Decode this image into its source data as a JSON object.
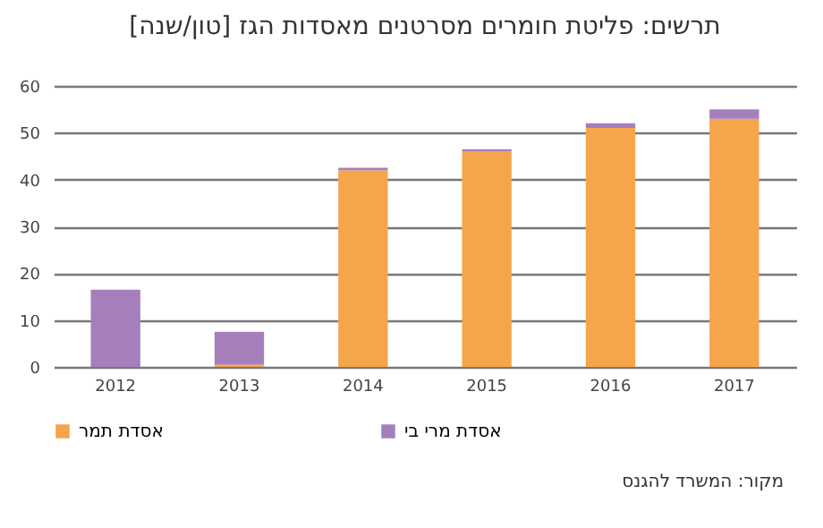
{
  "chart_data": {
    "type": "bar",
    "title": "תרשים: פליטת חומרים מסרטנים מאסדות הגז [טון/שנה]",
    "categories": [
      "2012",
      "2013",
      "2014",
      "2015",
      "2016",
      "2017"
    ],
    "series": [
      {
        "name": "אסדת תמר",
        "color": "#f5a54a",
        "values": [
          0,
          0.5,
          42,
          46,
          51,
          53
        ]
      },
      {
        "name": "אסדת מרי בי",
        "color": "#a57fbc",
        "values": [
          16.5,
          7,
          0.5,
          0.5,
          1,
          2
        ]
      }
    ],
    "stacked": true,
    "ylim": [
      0,
      60
    ],
    "yticks": [
      0,
      10,
      20,
      30,
      40,
      50,
      60
    ],
    "grid": "y",
    "legend": "bottom",
    "annotations": [
      "מקור: המשרד להגנס"
    ]
  }
}
